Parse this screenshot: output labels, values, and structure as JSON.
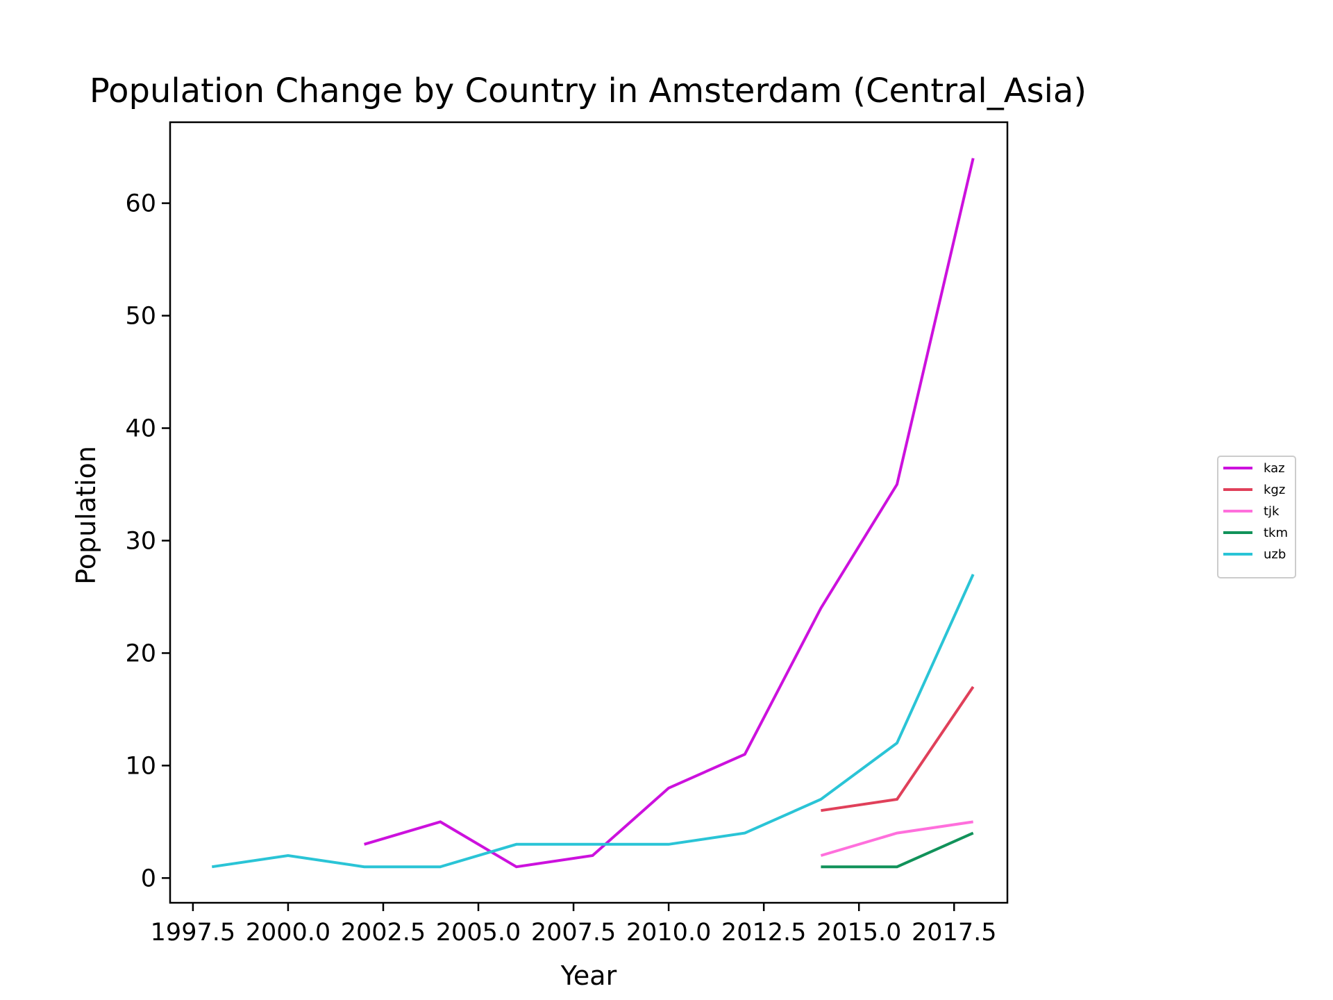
{
  "chart_data": {
    "type": "line",
    "title": "Population Change by Country in Amsterdam (Central_Asia)",
    "xlabel": "Year",
    "ylabel": "Population",
    "xlim": [
      1996.9,
      2018.9
    ],
    "ylim": [
      -2.2,
      67.2
    ],
    "x_ticks": [
      1997.5,
      2000.0,
      2002.5,
      2005.0,
      2007.5,
      2010.0,
      2012.5,
      2015.0,
      2017.5
    ],
    "x_tick_labels": [
      "1997.5",
      "2000.0",
      "2002.5",
      "2005.0",
      "2007.5",
      "2010.0",
      "2012.5",
      "2015.0",
      "2017.5"
    ],
    "y_ticks": [
      0,
      10,
      20,
      30,
      40,
      50,
      60
    ],
    "y_tick_labels": [
      "0",
      "10",
      "20",
      "30",
      "40",
      "50",
      "60"
    ],
    "grid": false,
    "legend_position": "right",
    "series": [
      {
        "name": "kaz",
        "color": "#cc11dd",
        "x": [
          2002,
          2004,
          2006,
          2008,
          2010,
          2012,
          2014,
          2016,
          2018
        ],
        "y": [
          3,
          5,
          1,
          2,
          8,
          11,
          24,
          35,
          64
        ]
      },
      {
        "name": "kgz",
        "color": "#e0405a",
        "x": [
          2014,
          2016,
          2018
        ],
        "y": [
          6,
          7,
          17
        ]
      },
      {
        "name": "tjk",
        "color": "#ff6fdc",
        "x": [
          2014,
          2016,
          2018
        ],
        "y": [
          2,
          4,
          5
        ]
      },
      {
        "name": "tkm",
        "color": "#11925a",
        "x": [
          2014,
          2016,
          2018
        ],
        "y": [
          1,
          1,
          4
        ]
      },
      {
        "name": "uzb",
        "color": "#2ac4d6",
        "x": [
          1998,
          2000,
          2002,
          2004,
          2006,
          2008,
          2010,
          2012,
          2014,
          2016,
          2018
        ],
        "y": [
          1,
          2,
          1,
          1,
          3,
          3,
          3,
          4,
          7,
          12,
          27
        ]
      }
    ]
  }
}
